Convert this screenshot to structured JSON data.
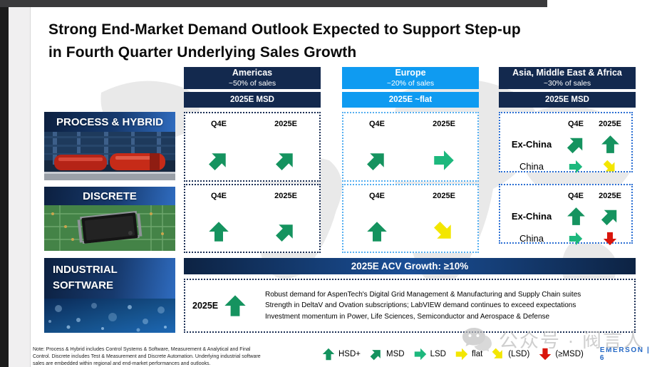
{
  "title": {
    "line1": "Strong End-Market Demand Outlook Expected to Support Step-up",
    "line2": "in Fourth Quarter Underlying Sales Growth"
  },
  "regions": [
    {
      "name": "Americas",
      "share": "~50% of sales",
      "outlook": "2025E MSD"
    },
    {
      "name": "Europe",
      "share": "~20% of sales",
      "outlook": "2025E ~flat"
    },
    {
      "name": "Asia, Middle East & Africa",
      "share": "~30% of sales",
      "outlook": "2025E MSD"
    }
  ],
  "labels": {
    "q4e": "Q4E",
    "y2025e": "2025E",
    "ex_china": "Ex-China",
    "china": "China"
  },
  "rows": [
    {
      "label": "PROCESS & HYBRID",
      "americas": {
        "q4": "msd",
        "yr": "msd"
      },
      "europe": {
        "q4": "msd",
        "yr": "lsd"
      },
      "asia": {
        "exchina": {
          "q4": "msd",
          "yr": "hsd"
        },
        "china": {
          "q4": "lsd",
          "yr": "lsd_down"
        }
      }
    },
    {
      "label": "DISCRETE",
      "americas": {
        "q4": "hsd",
        "yr": "msd"
      },
      "europe": {
        "q4": "hsd",
        "yr": "lsd_down"
      },
      "asia": {
        "exchina": {
          "q4": "hsd",
          "yr": "msd"
        },
        "china": {
          "q4": "lsd",
          "yr": "msd_down"
        }
      }
    }
  ],
  "software": {
    "label_line1": "INDUSTRIAL",
    "label_line2": "SOFTWARE",
    "banner": "2025E ACV Growth: ≥10%",
    "period": "2025E",
    "arrow": "hsd",
    "bullets": [
      "Robust demand for AspenTech's Digital Grid Management & Manufacturing and Supply Chain suites",
      "Strength in DeltaV and Ovation subscriptions; LabVIEW demand continues to exceed expectations",
      "Investment momentum in Power, Life Sciences, Semiconductor and Aerospace & Defense"
    ]
  },
  "legend": {
    "items": [
      {
        "label": "HSD+",
        "arrow": "hsd"
      },
      {
        "label": "MSD",
        "arrow": "msd"
      },
      {
        "label": "LSD",
        "arrow": "lsd"
      },
      {
        "label": "flat",
        "arrow": "flat"
      },
      {
        "label": "(LSD)",
        "arrow": "lsd_down"
      },
      {
        "label": "(≥MSD)",
        "arrow": "msd_down"
      }
    ]
  },
  "footer": {
    "note_lines": [
      "Note: Process & Hybrid includes Control Systems & Software, Measurement & Analytical and Final",
      "Control. Discrete includes Test & Measurement and Discrete Automation. Underlying industrial software",
      "sales are embedded within regional and end-market performances and outlooks."
    ],
    "brand": "EMERSON | 6"
  },
  "watermark": {
    "text": "公众号 · 阀言人"
  },
  "arrow_styles": {
    "hsd": {
      "color": "#15935f",
      "rot": 0
    },
    "msd": {
      "color": "#15935f",
      "rot": 45
    },
    "lsd": {
      "color": "#1db87d",
      "rot": 90
    },
    "flat": {
      "color": "#f3e600",
      "rot": 90
    },
    "lsd_down": {
      "color": "#f3e600",
      "rot": 135
    },
    "msd_down": {
      "color": "#d9150c",
      "rot": 180
    }
  },
  "colors": {
    "navy": "#13294e",
    "light_blue": "#0f9bf1",
    "green_dark": "#15935f",
    "green_light": "#1db87d",
    "yellow": "#f3e600",
    "red": "#d9150c",
    "brand_blue": "#2468c5"
  }
}
